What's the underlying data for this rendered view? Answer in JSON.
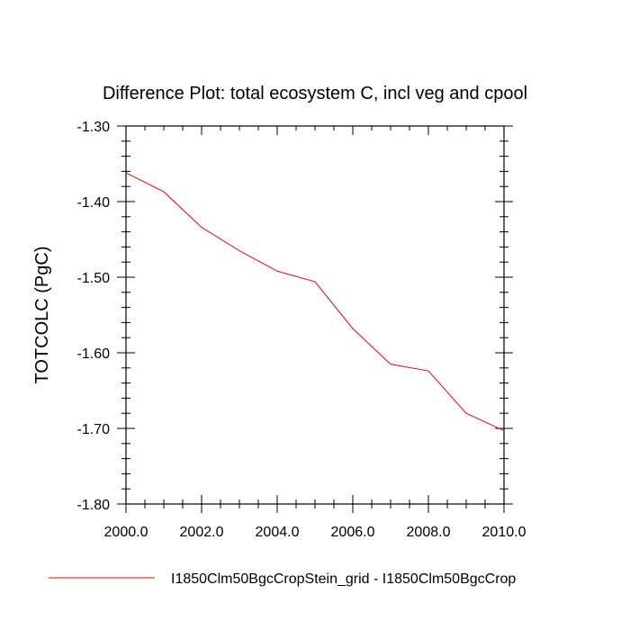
{
  "chart_data": {
    "type": "line",
    "title": "Difference Plot: total ecosystem C, incl veg and cpool",
    "xlabel": "",
    "ylabel": "TOTCOLC  (PgC)",
    "xlim": [
      2000.0,
      2010.0
    ],
    "ylim": [
      -1.8,
      -1.3
    ],
    "x_ticks": [
      "2000.0",
      "2002.0",
      "2004.0",
      "2006.0",
      "2008.0",
      "2010.0"
    ],
    "y_ticks": [
      "-1.30",
      "-1.40",
      "-1.50",
      "-1.60",
      "-1.70",
      "-1.80"
    ],
    "grid": false,
    "legend_position": "bottom",
    "series": [
      {
        "name": "I1850Clm50BgcCropStein_grid - I1850Clm50BgcCrop",
        "color": "#ff0000",
        "x": [
          2000,
          2001,
          2002,
          2003,
          2004,
          2005,
          2006,
          2007,
          2008,
          2009,
          2010
        ],
        "values": [
          -1.362,
          -1.387,
          -1.434,
          -1.465,
          -1.492,
          -1.506,
          -1.568,
          -1.615,
          -1.624,
          -1.68,
          -1.703
        ]
      }
    ]
  }
}
